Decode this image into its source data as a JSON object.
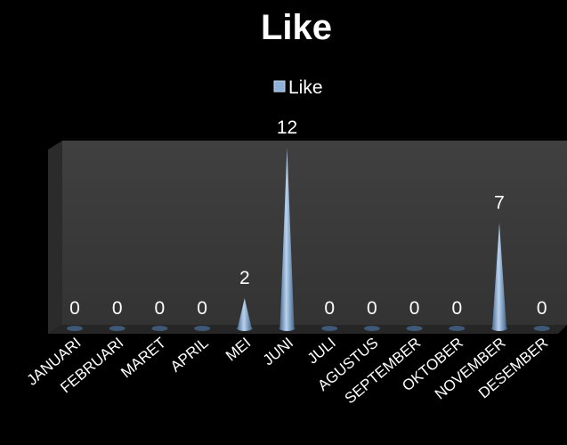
{
  "chart_data": {
    "type": "bar",
    "style": "3d-cone",
    "title": "Like",
    "legend": {
      "position": "top",
      "entries": [
        "Like"
      ]
    },
    "categories": [
      "JANUARI",
      "FEBRUARI",
      "MARET",
      "APRIL",
      "MEI",
      "JUNI",
      "JULI",
      "AGUSTUS",
      "SEPTEMBER",
      "OKTOBER",
      "NOVEMBER",
      "DESEMBER"
    ],
    "series": [
      {
        "name": "Like",
        "values": [
          0,
          0,
          0,
          0,
          2,
          12,
          0,
          0,
          0,
          0,
          7,
          0
        ]
      }
    ],
    "data_labels": [
      "0",
      "0",
      "0",
      "0",
      "2",
      "12",
      "0",
      "0",
      "0",
      "0",
      "7",
      "0"
    ],
    "ylim": [
      0,
      12
    ],
    "grid": false,
    "colors": {
      "background": "#000000",
      "plot_wall": "#3a3a3a",
      "floor": "#222222",
      "series": "#8eb2d8",
      "text": "#ffffff"
    }
  }
}
